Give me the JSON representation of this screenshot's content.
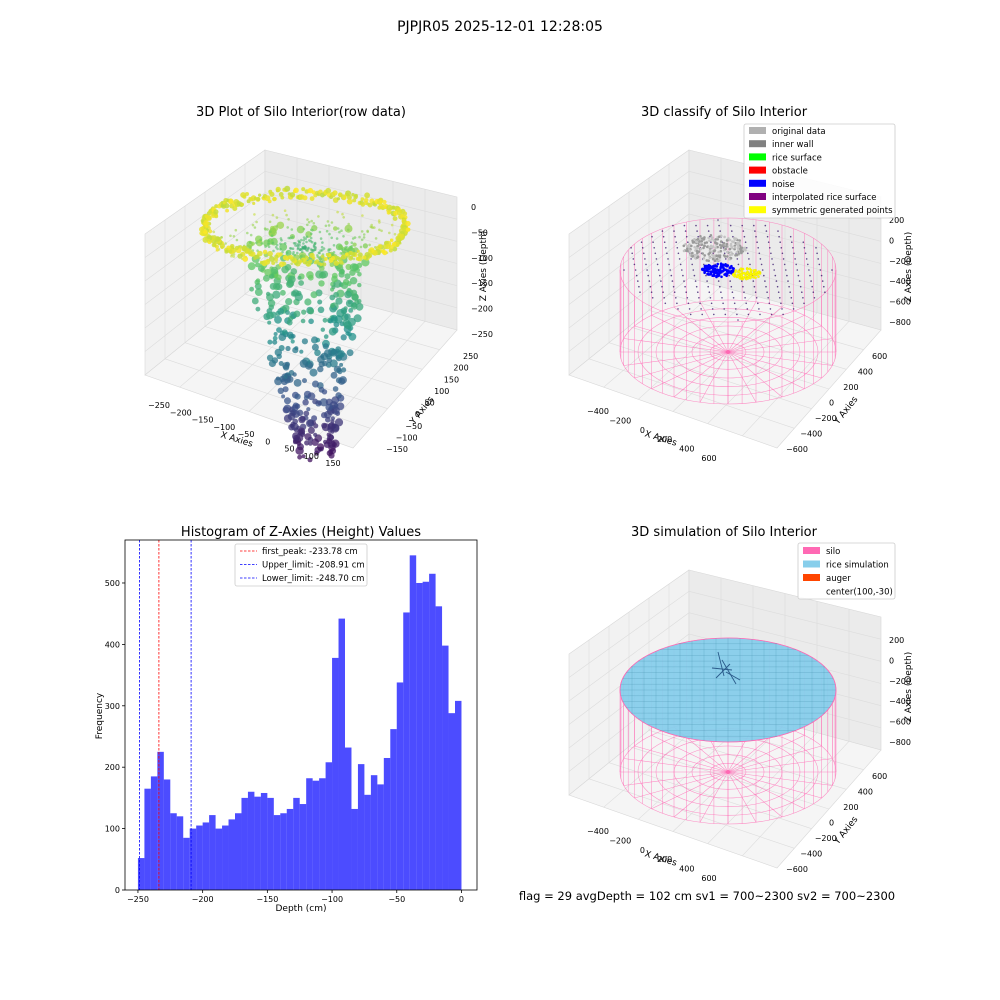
{
  "figure": {
    "suptitle": "PJPJR05 2025-12-01 12:28:05",
    "footer": "flag = 29  avgDepth = 102 cm  sv1 = 700~2300  sv2 = 700~2300"
  },
  "chart_data": [
    {
      "type": "scatter",
      "projection": "3d",
      "title": "3D Plot of Silo Interior(row data)",
      "xlabel": "X Axies",
      "ylabel": "Y Axies",
      "zlabel": "Z Axies (Depth)",
      "xlim": [
        -260,
        160
      ],
      "ylim": [
        -160,
        260
      ],
      "zlim": [
        -260,
        5
      ],
      "x_ticks": [
        "−250",
        "−200",
        "−150",
        "−100",
        "−50",
        "0",
        "50",
        "100",
        "150"
      ],
      "y_ticks": [
        "−150",
        "−100",
        "−50",
        "0",
        "50",
        "100",
        "150",
        "200",
        "250"
      ],
      "z_ticks": [
        "0",
        "−50",
        "−100",
        "−150",
        "−200",
        "−250"
      ],
      "colormap": "viridis",
      "ring_z": -50,
      "ring_radius": 200,
      "pile_top_radius": 60,
      "pile_bottom_z": -250
    },
    {
      "type": "scatter",
      "projection": "3d",
      "title": "3D classify of Silo Interior",
      "xlabel": "X Axies",
      "ylabel": "Y Axies",
      "zlabel": "Z Axies (Depth)",
      "x_ticks": [
        "−400",
        "−200",
        "0",
        "200",
        "400",
        "600"
      ],
      "y_ticks": [
        "−600",
        "−400",
        "−200",
        "0",
        "200",
        "400",
        "600"
      ],
      "z_ticks": [
        "200",
        "0",
        "−200",
        "−400",
        "−600",
        "−800"
      ],
      "legend": [
        {
          "name": "original data",
          "color": "#b0b0b0"
        },
        {
          "name": "inner wall",
          "color": "#808080"
        },
        {
          "name": "rice surface",
          "color": "#00ff00"
        },
        {
          "name": "obstacle",
          "color": "#ff0000"
        },
        {
          "name": "noise",
          "color": "#0000ff"
        },
        {
          "name": "interpolated rice surface",
          "color": "#800080"
        },
        {
          "name": "symmetric generated points",
          "color": "#ffff00"
        }
      ],
      "silo_color": "#ff69b4"
    },
    {
      "type": "bar",
      "title": "Histogram of Z-Axies (Height) Values",
      "xlabel": "Depth (cm)",
      "ylabel": "Frequency",
      "xlim": [
        -260,
        12
      ],
      "ylim": [
        0,
        570
      ],
      "x_ticks": [
        "−250",
        "−200",
        "−150",
        "−100",
        "−50",
        "0"
      ],
      "y_ticks": [
        "0",
        "100",
        "200",
        "300",
        "400",
        "500"
      ],
      "bin_start": -250,
      "bin_width": 5,
      "values": [
        52,
        165,
        185,
        225,
        180,
        125,
        120,
        85,
        100,
        105,
        110,
        122,
        100,
        105,
        115,
        125,
        150,
        160,
        152,
        158,
        150,
        122,
        125,
        132,
        150,
        140,
        182,
        178,
        182,
        208,
        378,
        442,
        232,
        132,
        205,
        155,
        187,
        172,
        215,
        262,
        338,
        452,
        545,
        500,
        502,
        515,
        462,
        398,
        288,
        308
      ],
      "bar_color": "#0000ff",
      "vlines": [
        {
          "label": "first_peak: -233.78 cm",
          "x": -233.78,
          "color": "#ff0000"
        },
        {
          "label": "Upper_limit: -208.91 cm",
          "x": -208.91,
          "color": "#0000ff"
        },
        {
          "label": "Lower_limit: -248.70 cm",
          "x": -248.7,
          "color": "#0000ff"
        }
      ]
    },
    {
      "type": "surface",
      "projection": "3d",
      "title": "3D simulation of Silo Interior",
      "xlabel": "X Axies",
      "ylabel": "Y Axies",
      "zlabel": "Z Axies (Depth)",
      "x_ticks": [
        "−400",
        "−200",
        "0",
        "200",
        "400",
        "600"
      ],
      "y_ticks": [
        "−600",
        "−400",
        "−200",
        "0",
        "200",
        "400",
        "600"
      ],
      "z_ticks": [
        "200",
        "0",
        "−200",
        "−400",
        "−600",
        "−800"
      ],
      "legend": [
        {
          "name": "silo",
          "color": "#ff69b4"
        },
        {
          "name": "rice simulation",
          "color": "#87ceeb"
        },
        {
          "name": "auger",
          "color": "#ff4500"
        },
        {
          "name": "center(100,-30)",
          "color": ""
        }
      ]
    }
  ]
}
